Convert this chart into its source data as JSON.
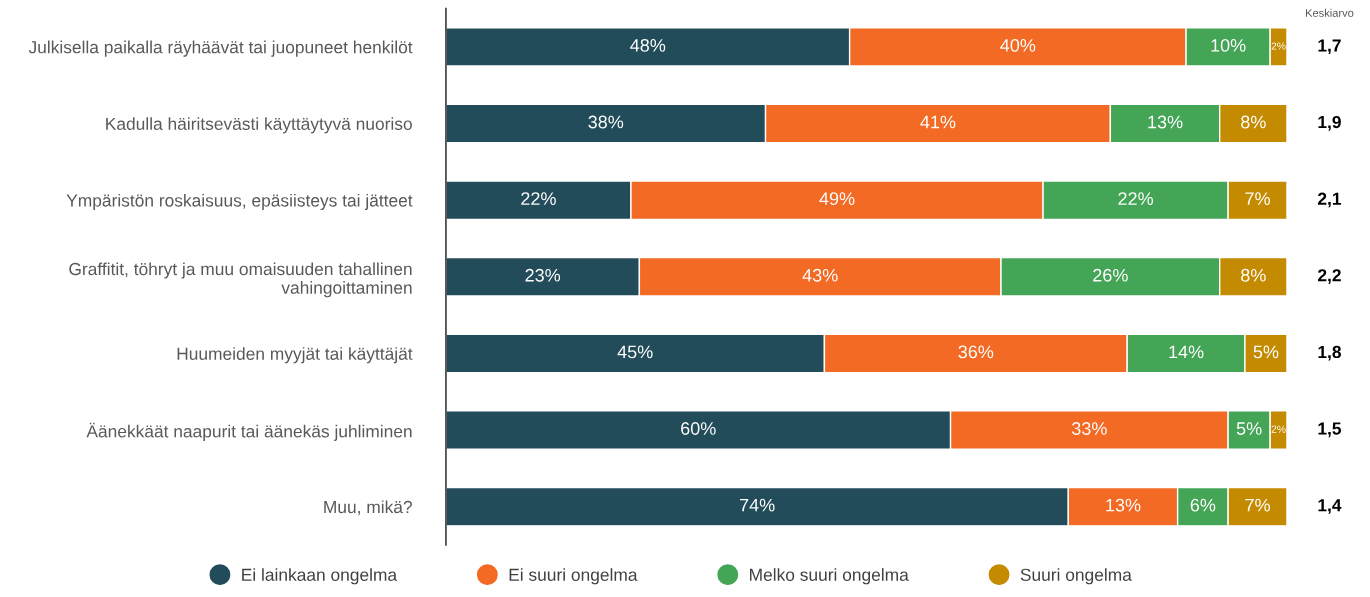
{
  "chart_data": {
    "type": "bar",
    "orientation": "horizontal",
    "stacked": true,
    "categories": [
      "Julkisella paikalla räyhäävät tai juopuneet henkilöt",
      "Kadulla häiritsevästi käyttäytyvä nuoriso",
      "Ympäristön roskaisuus, epäsiisteys tai jätteet",
      "Graffitit, töhryt ja muu omaisuuden tahallinen vahingoittaminen",
      "Huumeiden myyjät tai käyttäjät",
      "Äänekkäät naapurit tai äänekäs juhliminen",
      "Muu, mikä?"
    ],
    "series": [
      {
        "name": "Ei lainkaan ongelma",
        "color": "#234c5a",
        "values": [
          48,
          38,
          22,
          23,
          45,
          60,
          74
        ],
        "value_labels": [
          "48%",
          "38%",
          "22%",
          "23%",
          "45%",
          "60%",
          "74%"
        ]
      },
      {
        "name": "Ei suuri ongelma",
        "color": "#f26a24",
        "values": [
          40,
          41,
          49,
          43,
          36,
          33,
          13
        ],
        "value_labels": [
          "40%",
          "41%",
          "49%",
          "43%",
          "36%",
          "33%",
          "13%"
        ]
      },
      {
        "name": "Melko suuri ongelma",
        "color": "#44a556",
        "values": [
          10,
          13,
          22,
          26,
          14,
          5,
          6
        ],
        "value_labels": [
          "10%",
          "13%",
          "22%",
          "26%",
          "14%",
          "5%",
          "6%"
        ]
      },
      {
        "name": "Suuri ongelma",
        "color": "#c48b00",
        "values": [
          2,
          8,
          7,
          8,
          5,
          2,
          7
        ],
        "value_labels": [
          "2%",
          "8%",
          "7%",
          "8%",
          "5%",
          "2%",
          "7%"
        ]
      }
    ],
    "xlim": [
      0,
      100
    ],
    "tick_labels": "y",
    "legend": "bottom",
    "marker": "circle",
    "annotations": [
      "Keskiarvo",
      "1,7",
      "1,9",
      "2,1",
      "2,2",
      "1,8",
      "1,5",
      "1,4"
    ]
  }
}
